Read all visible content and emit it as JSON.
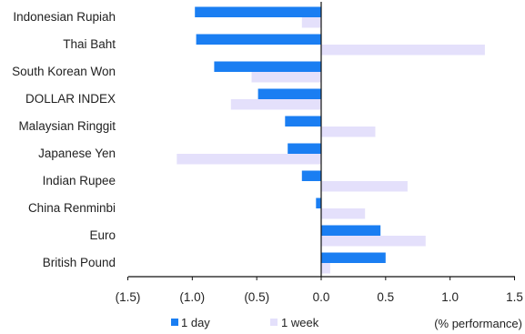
{
  "chart_data": {
    "type": "bar",
    "orientation": "horizontal",
    "categories": [
      "Indonesian Rupiah",
      "Thai Baht",
      "South Korean Won",
      "DOLLAR INDEX",
      "Malaysian Ringgit",
      "Japanese Yen",
      "Indian Rupee",
      "China Renminbi",
      "Euro",
      "British Pound"
    ],
    "series": [
      {
        "name": "1 day",
        "color": "#1a7ef2",
        "values": [
          -0.98,
          -0.97,
          -0.83,
          -0.49,
          -0.28,
          -0.26,
          -0.15,
          -0.04,
          0.46,
          0.5
        ]
      },
      {
        "name": "1 week",
        "color": "#e4e0fb",
        "values": [
          -0.15,
          1.27,
          -0.54,
          -0.7,
          0.42,
          -1.12,
          0.67,
          0.34,
          0.81,
          0.07
        ]
      }
    ],
    "xlim": [
      -1.5,
      1.5
    ],
    "xticks": [
      {
        "value": -1.5,
        "label": "(1.5)"
      },
      {
        "value": -1.0,
        "label": "(1.0)"
      },
      {
        "value": -0.5,
        "label": "(0.5)"
      },
      {
        "value": 0.0,
        "label": "0.0"
      },
      {
        "value": 0.5,
        "label": "0.5"
      },
      {
        "value": 1.0,
        "label": "1.0"
      },
      {
        "value": 1.5,
        "label": "1.5"
      }
    ],
    "grid": false,
    "legend_position": "bottom",
    "annotation": "(% performance)"
  }
}
